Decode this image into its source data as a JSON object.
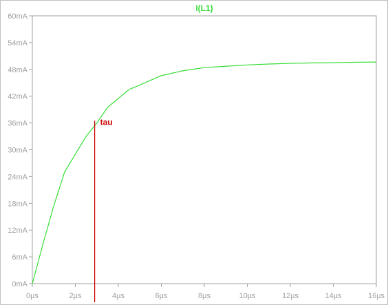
{
  "chart_data": {
    "type": "line",
    "title": "I(L1)",
    "xlabel": "",
    "ylabel": "",
    "xlim": [
      0,
      16
    ],
    "ylim": [
      0,
      60
    ],
    "x_unit": "µs",
    "y_unit": "mA",
    "x_ticks": [
      0,
      2,
      4,
      6,
      8,
      10,
      12,
      14,
      16
    ],
    "y_ticks": [
      0,
      6,
      12,
      18,
      24,
      30,
      36,
      42,
      48,
      54,
      60
    ],
    "x_tick_labels": [
      "0µs",
      "2µs",
      "4µs",
      "6µs",
      "8µs",
      "10µs",
      "12µs",
      "14µs",
      "16µs"
    ],
    "y_tick_labels": [
      "0mA",
      "6mA",
      "12mA",
      "18mA",
      "24mA",
      "30mA",
      "36mA",
      "42mA",
      "48mA",
      "54mA",
      "60mA"
    ],
    "grid": false,
    "series": [
      {
        "name": "I(L1)",
        "color": "#33dd33",
        "x": [
          0,
          0.5,
          1.0,
          1.5,
          2.0,
          2.5,
          3.0,
          3.5,
          4.0,
          4.5,
          5.0,
          6.0,
          7.0,
          8.0,
          9.0,
          10.0,
          11.0,
          12.0,
          13.0,
          14.0,
          15.0,
          16.0
        ],
        "y": [
          0,
          9.0,
          17.5,
          25.0,
          29.0,
          33.0,
          36.0,
          39.5,
          41.5,
          43.5,
          44.5,
          46.6,
          47.7,
          48.4,
          48.7,
          49.0,
          49.2,
          49.35,
          49.45,
          49.5,
          49.6,
          49.65
        ]
      }
    ],
    "annotations": [
      {
        "text": "tau",
        "x": 2.9,
        "y_from": 0,
        "y_to": 36.5,
        "color": "#cc0000"
      }
    ],
    "colors": {
      "axis": "#a0a0a0",
      "tick_label": "#a0a0a0",
      "trace": "#33dd33",
      "annotation": "#cc0000",
      "background": "#ffffff"
    }
  }
}
